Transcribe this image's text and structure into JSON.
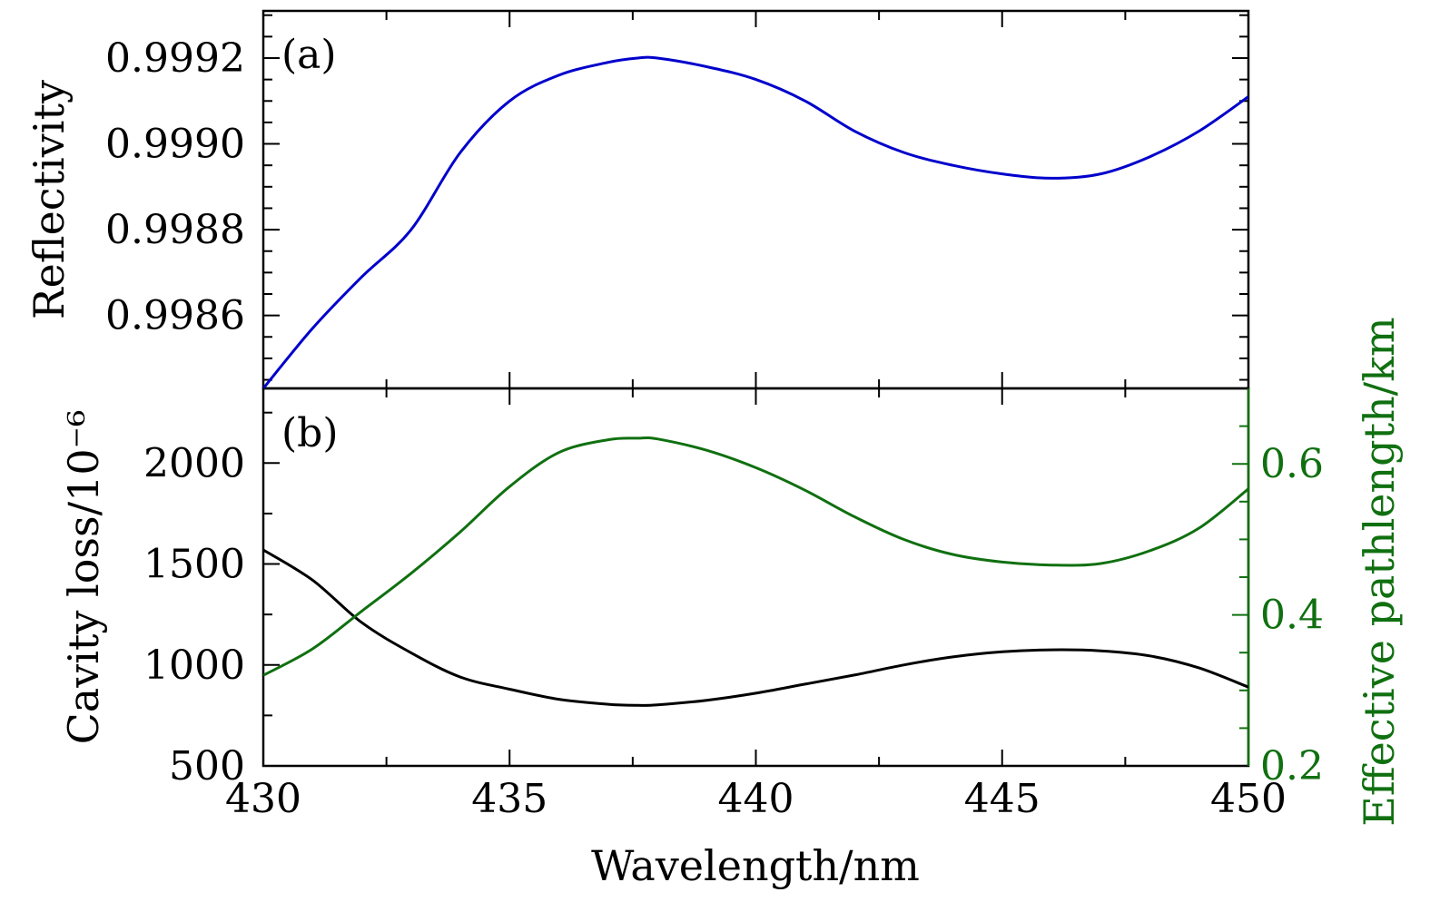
{
  "chart_data": [
    {
      "panel_label": "(a)",
      "type": "line",
      "xlabel": "Wavelength/nm",
      "ylabel": "Reflectivity",
      "xlim": [
        430,
        450
      ],
      "ylim": [
        0.99843,
        0.99931
      ],
      "xticks": [
        430,
        435,
        440,
        445,
        450
      ],
      "yticks": [
        0.9986,
        0.9988,
        0.999,
        0.9992
      ],
      "ytick_labels": [
        "0.9986",
        "0.9988",
        "0.9990",
        "0.9992"
      ],
      "series": [
        {
          "color": "#0000cc",
          "x": [
            430,
            431,
            432,
            433,
            434,
            435,
            436,
            437,
            437.6,
            438,
            439,
            440,
            441,
            442,
            443,
            444,
            445,
            446,
            447,
            448,
            449,
            450
          ],
          "y": [
            0.99843,
            0.99857,
            0.99869,
            0.9988,
            0.99898,
            0.9991,
            0.99916,
            0.99919,
            0.9992,
            0.9992,
            0.99918,
            0.99915,
            0.9991,
            0.99903,
            0.99898,
            0.99895,
            0.99893,
            0.99892,
            0.99893,
            0.99897,
            0.99903,
            0.99911
          ]
        }
      ]
    },
    {
      "panel_label": "(b)",
      "type": "line",
      "xlabel": "Wavelength/nm",
      "ylabel": "Cavity loss/10⁻⁶",
      "ylabel_right": "Effective pathlength/km",
      "xlim": [
        430,
        450
      ],
      "ylim": [
        500,
        2370
      ],
      "ylim_right": [
        0.2,
        0.7
      ],
      "xticks": [
        430,
        435,
        440,
        445,
        450
      ],
      "xtick_labels": [
        "430",
        "435",
        "440",
        "445",
        "450"
      ],
      "yticks": [
        500,
        1000,
        1500,
        2000
      ],
      "yticks_right": [
        0.2,
        0.4,
        0.6
      ],
      "ytick_labels_right": [
        "0.2",
        "0.4",
        "0.6"
      ],
      "series": [
        {
          "axis": "left",
          "color": "#000000",
          "x": [
            430,
            431,
            432,
            433,
            434,
            435,
            436,
            437,
            437.6,
            438,
            439,
            440,
            441,
            442,
            443,
            444,
            445,
            446,
            447,
            448,
            449,
            450
          ],
          "y": [
            1570,
            1420,
            1210,
            1060,
            940,
            880,
            830,
            805,
            800,
            802,
            825,
            860,
            905,
            950,
            1000,
            1040,
            1065,
            1075,
            1070,
            1045,
            985,
            890
          ]
        },
        {
          "axis": "right",
          "color": "#107010",
          "x": [
            430,
            431,
            432,
            433,
            434,
            435,
            436,
            437,
            437.6,
            438,
            439,
            440,
            441,
            442,
            443,
            444,
            445,
            446,
            447,
            448,
            449,
            450
          ],
          "y": [
            0.32,
            0.355,
            0.405,
            0.455,
            0.51,
            0.57,
            0.615,
            0.632,
            0.634,
            0.633,
            0.618,
            0.595,
            0.565,
            0.53,
            0.5,
            0.48,
            0.47,
            0.466,
            0.468,
            0.485,
            0.515,
            0.567
          ]
        }
      ]
    }
  ],
  "colors": {
    "reflectivity_line": "#0000cc",
    "cavity_loss_line": "#000000",
    "pathlength_line": "#107010",
    "right_axis": "#107010"
  }
}
